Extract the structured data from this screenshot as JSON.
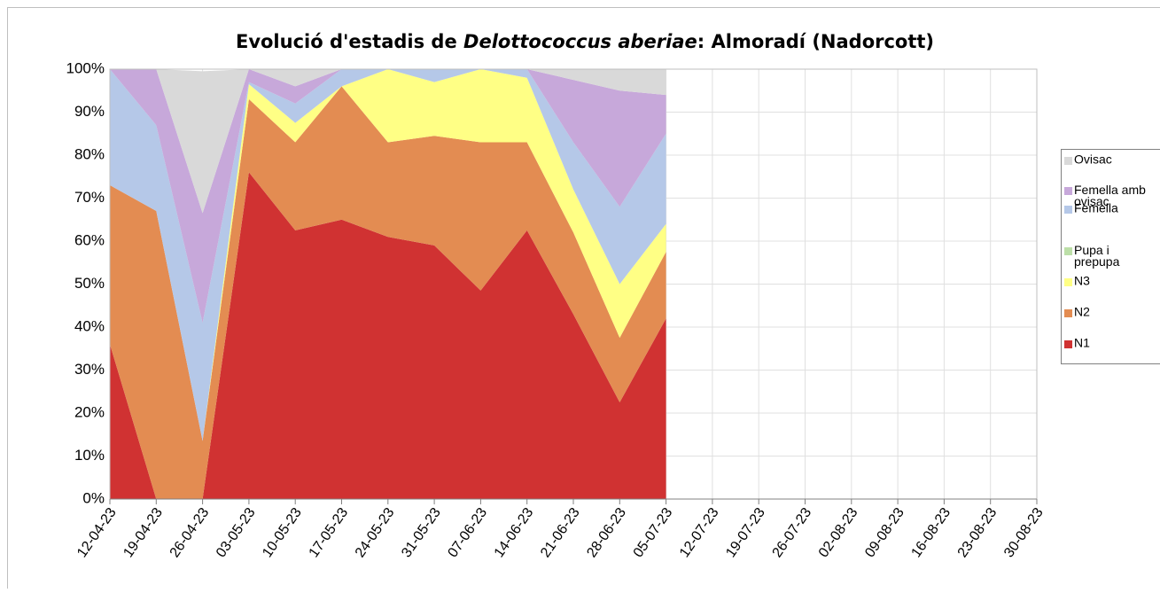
{
  "chart_data": {
    "type": "stacked_area",
    "title": [
      "Evolució d'estadis de ",
      "Delottococcus aberiae",
      ": Almoradí (Nadorcott)"
    ],
    "categories": [
      "12-04-23",
      "19-04-23",
      "26-04-23",
      "03-05-23",
      "10-05-23",
      "17-05-23",
      "24-05-23",
      "31-05-23",
      "07-06-23",
      "14-06-23",
      "21-06-23",
      "28-06-23",
      "05-07-23",
      "12-07-23",
      "19-07-23",
      "26-07-23",
      "02-08-23",
      "09-08-23",
      "16-08-23",
      "23-08-23",
      "30-08-23"
    ],
    "series": [
      {
        "name": "N1",
        "color": "#d03232",
        "values": [
          36,
          0,
          0,
          76,
          62.5,
          65,
          61,
          59,
          48.5,
          62.5,
          43,
          22.5,
          42,
          null,
          null,
          null,
          null,
          null,
          null,
          null,
          null
        ]
      },
      {
        "name": "N2",
        "color": "#e38c52",
        "values": [
          37,
          67,
          13.5,
          17,
          20.5,
          31,
          22,
          25.5,
          34.5,
          20.5,
          19,
          15,
          15.5,
          null,
          null,
          null,
          null,
          null,
          null,
          null,
          null
        ]
      },
      {
        "name": "N3",
        "color": "#ffff85",
        "values": [
          0,
          0,
          0,
          3.5,
          4.5,
          0,
          17,
          12.5,
          17,
          15,
          10,
          12.5,
          6.5,
          null,
          null,
          null,
          null,
          null,
          null,
          null,
          null
        ]
      },
      {
        "name": "Pupa i prepupa",
        "color": "#bcdfa8",
        "values": [
          0,
          0,
          0,
          0,
          0,
          0,
          0,
          0,
          0,
          0,
          0,
          0,
          0,
          null,
          null,
          null,
          null,
          null,
          null,
          null,
          null
        ]
      },
      {
        "name": "Femella",
        "color": "#b5c8e8",
        "values": [
          27,
          20,
          27.5,
          0.5,
          4.5,
          4,
          0,
          3,
          0,
          2,
          11,
          18,
          21,
          null,
          null,
          null,
          null,
          null,
          null,
          null,
          null
        ]
      },
      {
        "name": "Femella amb ovisac",
        "color": "#c7a8da",
        "values": [
          0,
          13,
          25.5,
          3,
          4,
          0,
          0,
          0,
          0,
          0,
          14.5,
          27,
          9,
          null,
          null,
          null,
          null,
          null,
          null,
          null,
          null
        ]
      },
      {
        "name": "Ovisac",
        "color": "#d9d9d9",
        "values": [
          0,
          0,
          33,
          0,
          4,
          0,
          0,
          0,
          0,
          0,
          2.5,
          5,
          6,
          null,
          null,
          null,
          null,
          null,
          null,
          null,
          null
        ]
      }
    ],
    "ylim": [
      0,
      100
    ],
    "yticks": [
      {
        "value": 0,
        "label": "0%"
      },
      {
        "value": 10,
        "label": "10%"
      },
      {
        "value": 20,
        "label": "20%"
      },
      {
        "value": 30,
        "label": "30%"
      },
      {
        "value": 40,
        "label": "40%"
      },
      {
        "value": 50,
        "label": "50%"
      },
      {
        "value": 60,
        "label": "60%"
      },
      {
        "value": 70,
        "label": "70%"
      },
      {
        "value": 80,
        "label": "80%"
      },
      {
        "value": 90,
        "label": "90%"
      },
      {
        "value": 100,
        "label": "100%"
      }
    ],
    "grid": true,
    "legend": "right"
  }
}
